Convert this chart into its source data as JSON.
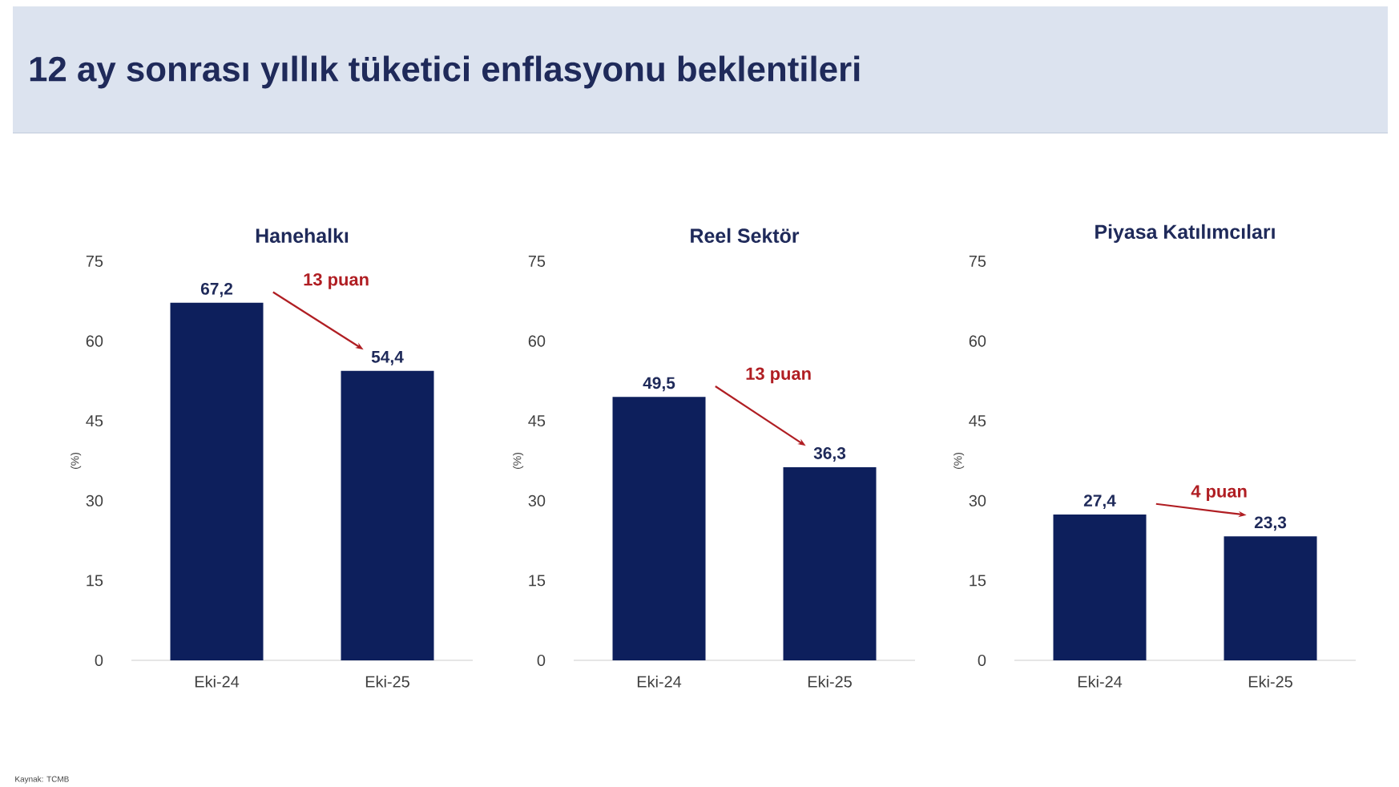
{
  "chart_data": [
    {
      "type": "bar",
      "title": "Hanehalkı",
      "ylabel": "(%)",
      "categories": [
        "Eki-24",
        "Eki-25"
      ],
      "values": [
        67.2,
        54.4
      ],
      "value_labels": [
        "67,2",
        "54,4"
      ],
      "color": "#0d1f5c",
      "ylim": [
        0,
        75
      ],
      "yticks": [
        0,
        15,
        30,
        45,
        60,
        75
      ],
      "annotations": [
        "13 puan",
        "12 ay sonrası yıllık tüketici enflasyonu beklentileri",
        "Kaynak: TCMB"
      ]
    },
    {
      "type": "bar",
      "title": "Reel Sektör",
      "ylabel": "(%)",
      "categories": [
        "Eki-24",
        "Eki-25"
      ],
      "values": [
        49.5,
        36.3
      ],
      "value_labels": [
        "49,5",
        "36,3"
      ],
      "color": "#0d1f5c",
      "ylim": [
        0,
        75
      ],
      "yticks": [
        0,
        15,
        30,
        45,
        60,
        75
      ],
      "annotations": [
        "13 puan"
      ]
    },
    {
      "type": "bar",
      "title": "Piyasa Katılımcıları",
      "ylabel": "(%)",
      "categories": [
        "Eki-24",
        "Eki-25"
      ],
      "values": [
        27.4,
        23.3
      ],
      "value_labels": [
        "27,4",
        "23,3"
      ],
      "color": "#0d1f5c",
      "ylim": [
        0,
        75
      ],
      "yticks": [
        0,
        15,
        30,
        45,
        60,
        75
      ],
      "annotations": [
        "4 puan"
      ]
    }
  ]
}
